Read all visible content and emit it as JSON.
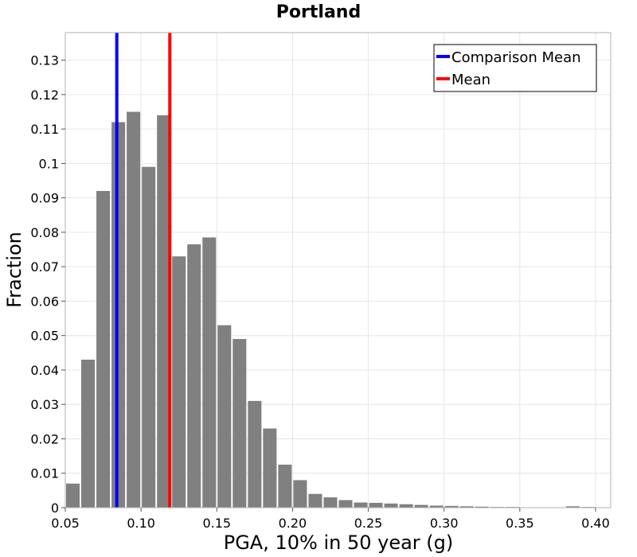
{
  "chart_data": {
    "type": "bar",
    "title": "Portland",
    "xlabel": "PGA, 10% in 50 year (g)",
    "ylabel": "Fraction",
    "xlim": [
      0.05,
      0.41
    ],
    "ylim": [
      0,
      0.138
    ],
    "grid": true,
    "legend_position": "top-right",
    "bin_width": 0.01,
    "bin_starts": [
      0.05,
      0.06,
      0.07,
      0.08,
      0.09,
      0.1,
      0.11,
      0.12,
      0.13,
      0.14,
      0.15,
      0.16,
      0.17,
      0.18,
      0.19,
      0.2,
      0.21,
      0.22,
      0.23,
      0.24,
      0.25,
      0.26,
      0.27,
      0.28,
      0.29,
      0.3,
      0.31,
      0.32,
      0.33,
      0.34,
      0.35,
      0.36,
      0.37,
      0.38,
      0.39
    ],
    "values": [
      0.007,
      0.043,
      0.092,
      0.112,
      0.115,
      0.099,
      0.114,
      0.073,
      0.0765,
      0.0785,
      0.053,
      0.049,
      0.031,
      0.023,
      0.0125,
      0.008,
      0.004,
      0.003,
      0.0022,
      0.0015,
      0.0014,
      0.0012,
      0.001,
      0.0008,
      0.0006,
      0.0005,
      0.0004,
      0.0003,
      0.0002,
      0.0002,
      0.0001,
      0.0001,
      0.0001,
      0.0004,
      0.0002
    ],
    "x_ticks": [
      0.05,
      0.1,
      0.15,
      0.2,
      0.25,
      0.3,
      0.35,
      0.4
    ],
    "x_tick_labels": [
      "0.05",
      "0.10",
      "0.15",
      "0.20",
      "0.25",
      "0.30",
      "0.35",
      "0.40"
    ],
    "y_ticks": [
      0,
      0.01,
      0.02,
      0.03,
      0.04,
      0.05,
      0.06,
      0.07,
      0.08,
      0.09,
      0.1,
      0.11,
      0.12,
      0.13
    ],
    "y_tick_labels": [
      "0",
      "0.01",
      "0.02",
      "0.03",
      "0.04",
      "0.05",
      "0.06",
      "0.07",
      "0.08",
      "0.09",
      "0.1",
      "0.11",
      "0.12",
      "0.13"
    ],
    "reference_lines": [
      {
        "name": "Comparison Mean",
        "x": 0.084,
        "color": "#0000ff"
      },
      {
        "name": "Mean",
        "x": 0.119,
        "color": "#ff0000"
      }
    ],
    "bar_color": "#808080",
    "grid_color": "#e6e6e6"
  }
}
